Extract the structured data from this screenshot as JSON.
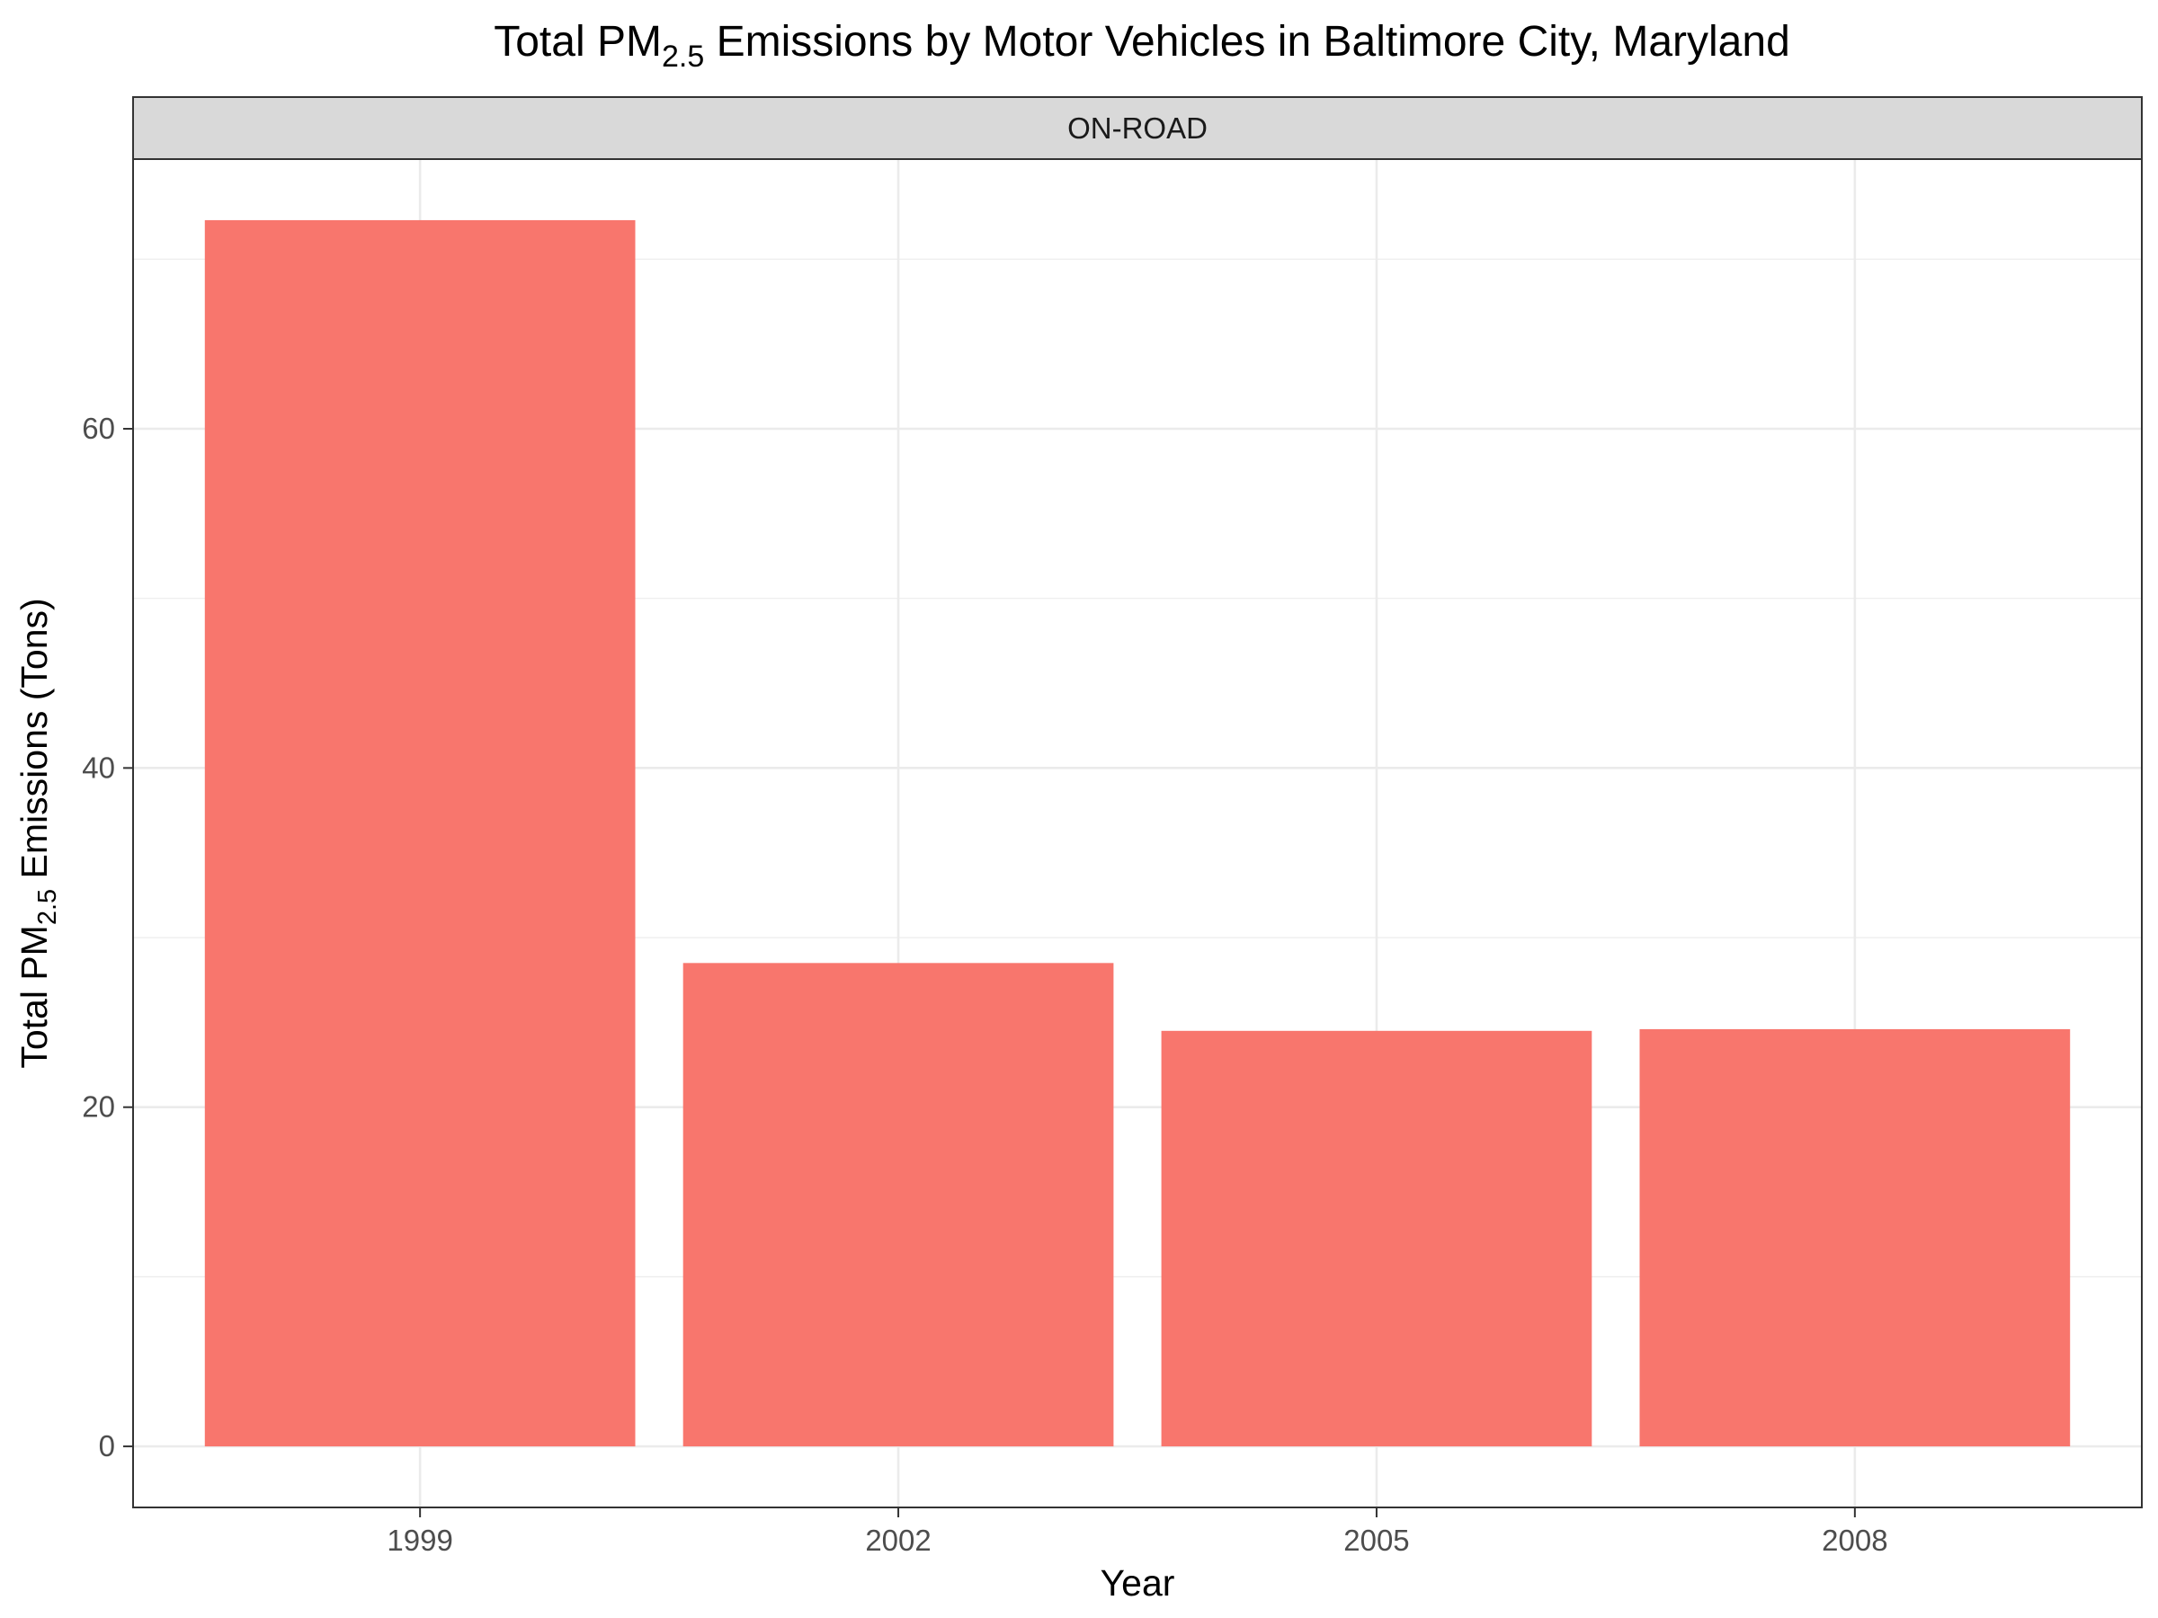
{
  "chart_data": {
    "type": "bar",
    "title": {
      "prefix": "Total PM",
      "subscript": "2.5",
      "suffix": " Emissions by Motor Vehicles in Baltimore City, Maryland"
    },
    "facet": "ON-ROAD",
    "xlabel": "Year",
    "ylabel": {
      "prefix": "Total PM",
      "subscript": "2.5",
      "suffix": " Emissions (Tons)"
    },
    "categories": [
      "1999",
      "2002",
      "2005",
      "2008"
    ],
    "values": [
      72.3,
      28.5,
      24.5,
      24.6
    ],
    "ylim": [
      -3.6,
      75.9
    ],
    "yticks": [
      0,
      20,
      40,
      60
    ],
    "yticks_minor": [
      10,
      30,
      50,
      70
    ],
    "bar_color": "#F8766D",
    "grid": true,
    "legend": "none"
  }
}
